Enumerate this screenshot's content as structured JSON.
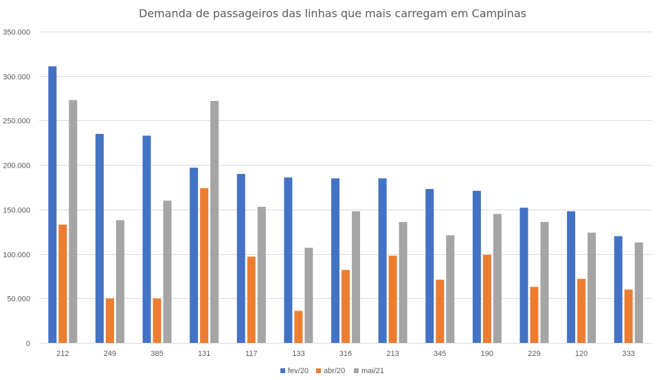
{
  "chart_data": {
    "type": "bar",
    "title": "Demanda de passageiros das linhas que mais carregam em Campinas",
    "xlabel": "",
    "ylabel": "",
    "categories": [
      "212",
      "249",
      "385",
      "131",
      "117",
      "133",
      "316",
      "213",
      "345",
      "190",
      "229",
      "120",
      "333"
    ],
    "series": [
      {
        "name": "fev/20",
        "color": "#4472c4",
        "values": [
          311000,
          235000,
          233000,
          197000,
          190000,
          186000,
          185000,
          185000,
          173000,
          171000,
          152000,
          148000,
          120000
        ]
      },
      {
        "name": "abr/20",
        "color": "#ed7d31",
        "values": [
          133000,
          50000,
          50000,
          174000,
          97000,
          36000,
          82000,
          98000,
          71000,
          99000,
          63000,
          72000,
          60000
        ]
      },
      {
        "name": "mai/21",
        "color": "#a5a5a5",
        "values": [
          273000,
          138000,
          160000,
          272000,
          153000,
          107000,
          148000,
          136000,
          121000,
          145000,
          136000,
          124000,
          113000
        ]
      }
    ],
    "ylim": [
      0,
      350000
    ],
    "yticks": [
      "0",
      "50.000",
      "100.000",
      "150.000",
      "200.000",
      "250.000",
      "300.000",
      "350.000"
    ],
    "grid": true,
    "legend_position": "bottom"
  }
}
